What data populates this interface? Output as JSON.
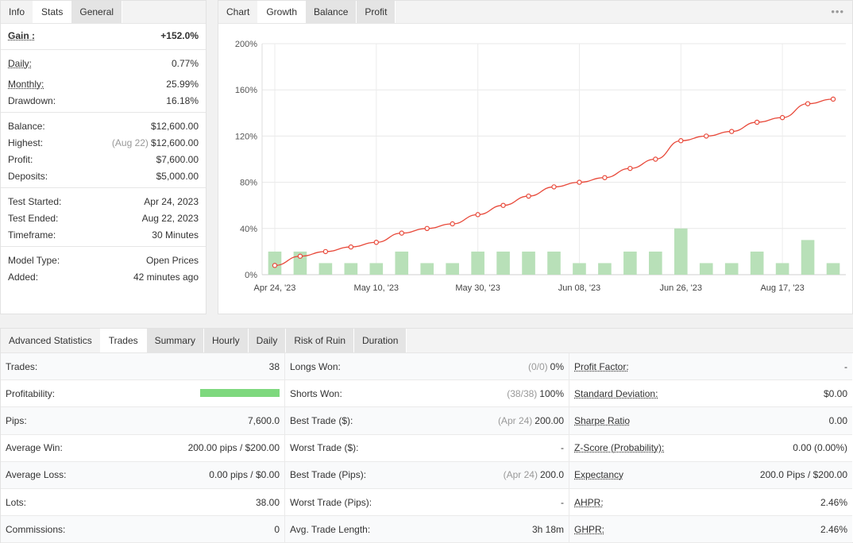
{
  "info_panel": {
    "tabs": [
      {
        "label": "Info"
      },
      {
        "label": "Stats"
      },
      {
        "label": "General"
      }
    ],
    "gain": {
      "label": "Gain :",
      "value": "+152.0%"
    },
    "group1": [
      {
        "label": "Daily:",
        "value": "0.77%"
      },
      {
        "label": "Monthly:",
        "value": "25.99%"
      },
      {
        "label": "Drawdown:",
        "value": "16.18%"
      }
    ],
    "group2": [
      {
        "label": "Balance:",
        "value": "$12,600.00",
        "pre": ""
      },
      {
        "label": "Highest:",
        "value": "$12,600.00",
        "pre": "(Aug 22)"
      },
      {
        "label": "Profit:",
        "value": "$7,600.00",
        "pre": ""
      },
      {
        "label": "Deposits:",
        "value": "$5,000.00",
        "pre": ""
      }
    ],
    "group3": [
      {
        "label": "Test Started:",
        "value": "Apr 24, 2023"
      },
      {
        "label": "Test Ended:",
        "value": "Aug 22, 2023"
      },
      {
        "label": "Timeframe:",
        "value": "30 Minutes"
      }
    ],
    "group4": [
      {
        "label": "Model Type:",
        "value": "Open Prices"
      },
      {
        "label": "Added:",
        "value": "42 minutes ago"
      }
    ]
  },
  "chart_panel": {
    "tabs": [
      {
        "label": "Chart"
      },
      {
        "label": "Growth"
      },
      {
        "label": "Balance"
      },
      {
        "label": "Profit"
      }
    ],
    "menu_glyph": "•••"
  },
  "colors": {
    "line": "#e8493a",
    "bar": "#b8e0b8",
    "profit_green": "#2bae2b"
  },
  "chart_data": {
    "type": "line",
    "title": "",
    "xlabel": "",
    "ylabel": "",
    "ylim": [
      0,
      200
    ],
    "y_ticks": [
      "0%",
      "40%",
      "80%",
      "120%",
      "160%",
      "200%"
    ],
    "y_tick_values": [
      0,
      40,
      80,
      120,
      160,
      200
    ],
    "x_tick_labels": [
      "Apr 24, '23",
      "May 10, '23",
      "May 30, '23",
      "Jun 08, '23",
      "Jun 26, '23",
      "Aug 17, '23"
    ],
    "x_tick_indices": [
      0,
      4,
      8,
      12,
      16,
      20
    ],
    "grid": true,
    "series": [
      {
        "type": "line",
        "values": [
          8,
          16,
          20,
          24,
          28,
          36,
          40,
          44,
          52,
          60,
          68,
          76,
          80,
          84,
          92,
          100,
          116,
          120,
          124,
          132,
          136,
          148,
          152
        ]
      },
      {
        "type": "bar",
        "values": [
          20,
          20,
          10,
          10,
          10,
          20,
          10,
          10,
          20,
          20,
          20,
          20,
          10,
          10,
          20,
          20,
          40,
          10,
          10,
          20,
          10,
          30,
          10
        ]
      }
    ]
  },
  "advanced": {
    "tabs": [
      {
        "label": "Advanced Statistics"
      },
      {
        "label": "Trades"
      },
      {
        "label": "Summary"
      },
      {
        "label": "Hourly"
      },
      {
        "label": "Daily"
      },
      {
        "label": "Risk of Ruin"
      },
      {
        "label": "Duration"
      }
    ],
    "col1": [
      {
        "label": "Trades:",
        "value": "38"
      },
      {
        "label": "Profitability:",
        "value": ""
      },
      {
        "label": "Pips:",
        "value": "7,600.0"
      },
      {
        "label": "Average Win:",
        "value": "200.00 pips / $200.00"
      },
      {
        "label": "Average Loss:",
        "value": "0.00 pips / $0.00"
      },
      {
        "label": "Lots:",
        "value": "38.00"
      },
      {
        "label": "Commissions:",
        "value": "0"
      }
    ],
    "profitability_fraction": 1.0,
    "col2": [
      {
        "label": "Longs Won:",
        "pre": "(0/0)",
        "value": "0%"
      },
      {
        "label": "Shorts Won:",
        "pre": "(38/38)",
        "value": "100%"
      },
      {
        "label": "Best Trade ($):",
        "pre": "(Apr 24)",
        "value": "200.00"
      },
      {
        "label": "Worst Trade ($):",
        "pre": "",
        "value": "-"
      },
      {
        "label": "Best Trade (Pips):",
        "pre": "(Apr 24)",
        "value": "200.0"
      },
      {
        "label": "Worst Trade (Pips):",
        "pre": "",
        "value": "-"
      },
      {
        "label": "Avg. Trade Length:",
        "pre": "",
        "value": "3h 18m"
      }
    ],
    "col3": [
      {
        "label": "Profit Factor:",
        "value": "-"
      },
      {
        "label": "Standard Deviation:",
        "value": "$0.00"
      },
      {
        "label": "Sharpe Ratio",
        "value": "0.00"
      },
      {
        "label": "Z-Score (Probability):",
        "value": "0.00 (0.00%)"
      },
      {
        "label": "Expectancy",
        "value": "200.0 Pips / $200.00"
      },
      {
        "label": "AHPR:",
        "value": "2.46%"
      },
      {
        "label": "GHPR:",
        "value": "2.46%"
      }
    ]
  }
}
